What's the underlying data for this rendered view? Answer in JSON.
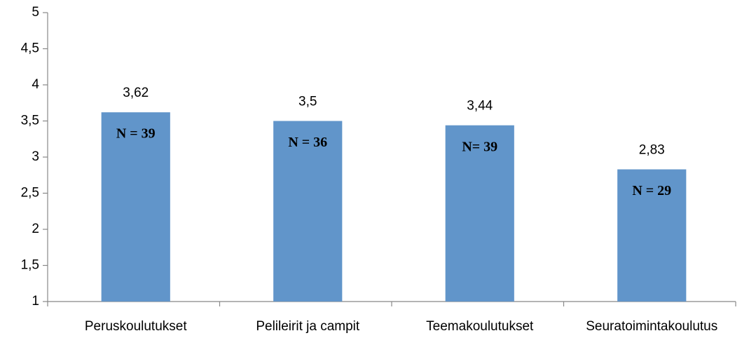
{
  "chart_data": {
    "type": "bar",
    "categories": [
      "Peruskoulutukset",
      "Pelileirit ja campit",
      "Teemakoulutukset",
      "Seuratoimintakoulutus"
    ],
    "values": [
      3.62,
      3.5,
      3.44,
      2.83
    ],
    "value_labels": [
      "3,62",
      "3,5",
      "3,44",
      "2,83"
    ],
    "annotations": [
      "N = 39",
      "N = 36",
      "N= 39",
      "N = 29"
    ],
    "color": "#6195ca",
    "ylim": [
      1,
      5
    ],
    "yticks": [
      1,
      {
        "value": 1.5,
        "label": "1,5"
      },
      2,
      {
        "value": 2.5,
        "label": "2,5"
      },
      3,
      {
        "value": 3.5,
        "label": "3,5"
      },
      4,
      {
        "value": 4.5,
        "label": "4,5"
      },
      5
    ],
    "grid": false
  }
}
